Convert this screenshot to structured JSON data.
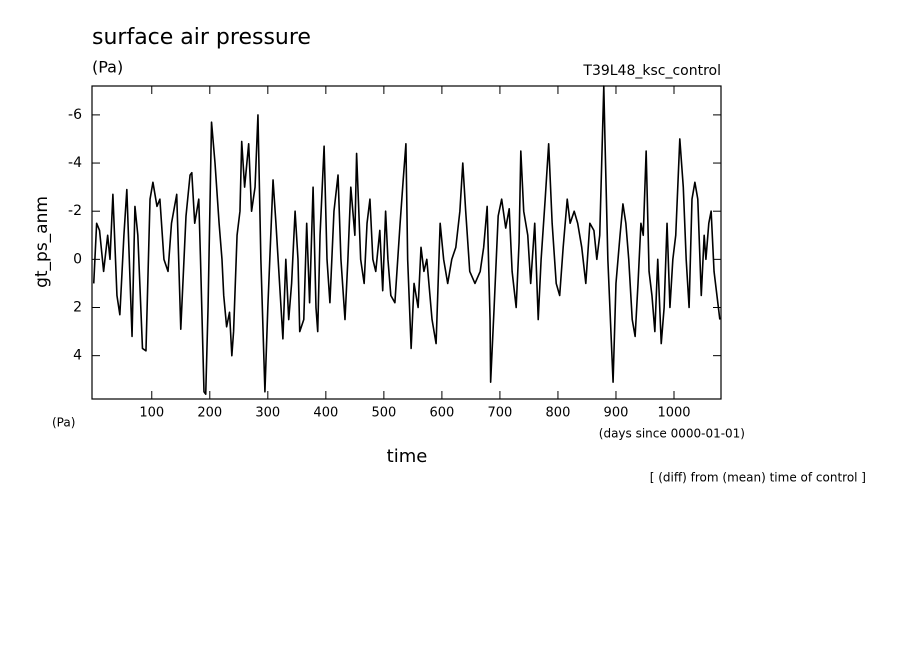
{
  "chart_data": {
    "type": "line",
    "title": "surface air pressure",
    "units_label": "(Pa)",
    "run_label": "T39L48_ksc_control",
    "y_label": "gt_ps_anm",
    "y_units_label": "(Pa)",
    "x_label": "time",
    "x_units_label": "(days since 0000-01-01)",
    "note": "[ (diff) from (mean) time of control ]",
    "xlim": [
      -3,
      1081
    ],
    "xticks": [
      100,
      200,
      300,
      400,
      500,
      600,
      700,
      800,
      900,
      1000
    ],
    "ylim": [
      5.8,
      -7.2
    ],
    "yticks": [
      -6,
      -4,
      -2,
      0,
      2,
      4
    ],
    "x": [
      0,
      5,
      10,
      17,
      24,
      28,
      33,
      40,
      45,
      52,
      57,
      62,
      66,
      71,
      76,
      84,
      90,
      97,
      102,
      109,
      114,
      121,
      128,
      134,
      143,
      150,
      159,
      166,
      169,
      174,
      181,
      184,
      190,
      193,
      197,
      203,
      209,
      216,
      221,
      224,
      229,
      234,
      238,
      241,
      247,
      252,
      255,
      260,
      267,
      272,
      278,
      283,
      288,
      295,
      300,
      309,
      314,
      326,
      331,
      336,
      341,
      347,
      352,
      355,
      362,
      367,
      372,
      378,
      383,
      386,
      390,
      397,
      402,
      407,
      414,
      421,
      426,
      433,
      438,
      443,
      450,
      453,
      460,
      466,
      471,
      476,
      481,
      486,
      493,
      498,
      503,
      507,
      512,
      519,
      528,
      533,
      538,
      541,
      547,
      552,
      559,
      564,
      569,
      574,
      583,
      590,
      597,
      603,
      610,
      617,
      624,
      631,
      636,
      641,
      648,
      657,
      666,
      672,
      678,
      683,
      684,
      690,
      697,
      703,
      710,
      716,
      721,
      728,
      733,
      736,
      741,
      748,
      753,
      760,
      766,
      771,
      778,
      784,
      790,
      797,
      803,
      809,
      816,
      821,
      828,
      834,
      841,
      848,
      855,
      862,
      867,
      872,
      879,
      881,
      886,
      895,
      900,
      907,
      912,
      917,
      922,
      928,
      933,
      938,
      943,
      947,
      952,
      957,
      962,
      967,
      972,
      978,
      983,
      988,
      993,
      998,
      1003,
      1010,
      1016,
      1021,
      1026,
      1031,
      1036,
      1041,
      1047,
      1052,
      1055,
      1060,
      1064,
      1069,
      1074,
      1079
    ],
    "series": [
      {
        "color": "#000000",
        "values": [
          1,
          -1.5,
          -1.2,
          0.5,
          -1,
          0,
          -2.7,
          1.5,
          2.3,
          -1,
          -2.9,
          0.5,
          3.2,
          -2.2,
          -1,
          3.7,
          3.8,
          -2.5,
          -3.2,
          -2.2,
          -2.5,
          0,
          0.5,
          -1.5,
          -2.7,
          2.9,
          -1.8,
          -3.5,
          -3.6,
          -1.5,
          -2.5,
          0,
          5.5,
          5.6,
          2,
          -5.7,
          -4,
          -1.5,
          0,
          1.5,
          2.8,
          2.2,
          4,
          3,
          -1,
          -2,
          -4.9,
          -3,
          -4.8,
          -2,
          -3,
          -6,
          0,
          5.5,
          2,
          -3.3,
          -1.5,
          3.3,
          0,
          2.5,
          1,
          -2,
          0,
          3,
          2.5,
          -1.5,
          1.8,
          -3,
          2,
          3,
          -1,
          -4.7,
          0,
          1.8,
          -2,
          -3.5,
          0,
          2.5,
          0,
          -3,
          -1,
          -4.4,
          0,
          1,
          -1.5,
          -2.5,
          0,
          0.5,
          -1.2,
          1.3,
          -2,
          0,
          1.5,
          1.8,
          -1.5,
          -3.2,
          -4.8,
          0,
          3.7,
          1,
          2,
          -0.5,
          0.5,
          0,
          2.5,
          3.5,
          -1.5,
          0,
          1,
          0,
          -0.5,
          -2,
          -4,
          -2,
          0.5,
          1,
          0.5,
          -0.5,
          -2.2,
          2.5,
          5.1,
          2,
          -1.8,
          -2.5,
          -1.3,
          -2.1,
          0.5,
          2,
          -0.7,
          -4.5,
          -2,
          -1,
          1,
          -1.5,
          2.5,
          0,
          -2.5,
          -4.8,
          -1.5,
          1,
          1.5,
          -0.5,
          -2.5,
          -1.5,
          -2,
          -1.5,
          -0.5,
          1,
          -1.5,
          -1.2,
          0,
          -1,
          -7.2,
          -5,
          0,
          5.1,
          1,
          -1,
          -2.3,
          -1.5,
          0,
          2.5,
          3.2,
          1,
          -1.5,
          -1,
          -4.5,
          0.5,
          1.5,
          3,
          0,
          3.5,
          2,
          -1.5,
          2,
          0,
          -1,
          -5,
          -3,
          0,
          2,
          -2.5,
          -3.2,
          -2.5,
          1.5,
          -1,
          0,
          -1.5,
          -2,
          0.5,
          1.5,
          2.5
        ]
      }
    ]
  }
}
